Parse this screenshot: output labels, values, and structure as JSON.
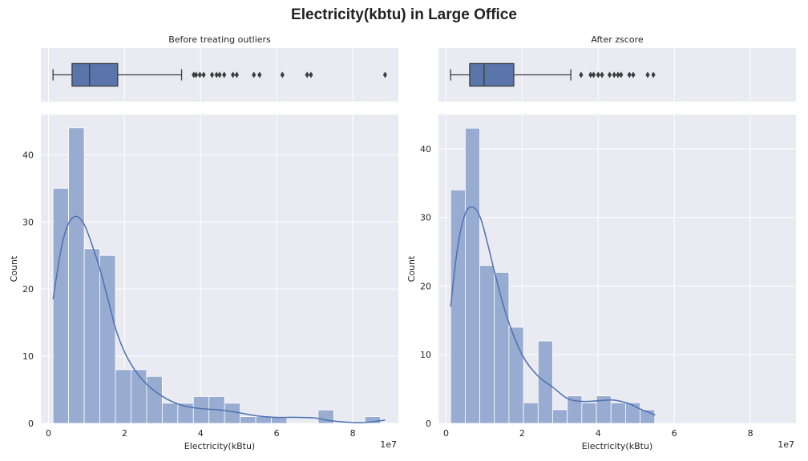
{
  "suptitle": "Electricity(kbtu) in Large Office",
  "colors": {
    "panel_bg": "#eaeaf2",
    "grid": "#ffffff",
    "box_fill": "#5975a9",
    "box_edge": "#3d3d3d",
    "bar_fill": "#98abd1",
    "kde_line": "#4c72b0",
    "text": "#262626"
  },
  "chart_data": [
    {
      "type": "box",
      "title": "Before treating outliers",
      "units_exponent_label": "1e7",
      "xlim": [
        -0.2,
        9.2
      ],
      "whisker_low": 0.12,
      "q1": 0.62,
      "median": 1.08,
      "q3": 1.82,
      "whisker_high": 3.5,
      "outliers": [
        3.82,
        3.88,
        3.98,
        4.08,
        4.3,
        4.42,
        4.5,
        4.62,
        4.85,
        4.95,
        5.4,
        5.55,
        6.15,
        6.8,
        6.9,
        8.85
      ]
    },
    {
      "type": "bar",
      "title": "",
      "xlabel": "Electricity(kBtu)",
      "ylabel": "Count",
      "units_exponent_label": "1e7",
      "xlim": [
        -0.2,
        9.2
      ],
      "ylim": [
        0,
        46
      ],
      "xticks": [
        0,
        2,
        4,
        6,
        8
      ],
      "yticks": [
        0,
        10,
        20,
        30,
        40
      ],
      "bin_width": 0.41,
      "bin_start": 0.12,
      "values": [
        35,
        44,
        26,
        25,
        8,
        8,
        7,
        3,
        3,
        4,
        4,
        3,
        1,
        1,
        1,
        0,
        0,
        2,
        0,
        0,
        1
      ],
      "kde": {
        "x": [
          0.12,
          0.35,
          0.55,
          0.75,
          0.95,
          1.15,
          1.35,
          1.55,
          1.8,
          2.1,
          2.5,
          3.0,
          3.5,
          4.0,
          4.5,
          5.0,
          5.5,
          6.0,
          6.5,
          7.0,
          7.4,
          7.8,
          8.2,
          8.6,
          8.85
        ],
        "y": [
          18.5,
          26.5,
          30.0,
          30.8,
          29.5,
          26.5,
          23.0,
          18.8,
          13.5,
          9.5,
          6.3,
          4.0,
          2.7,
          2.2,
          2.0,
          1.6,
          1.1,
          0.9,
          0.9,
          0.8,
          0.4,
          0.2,
          0.1,
          0.3,
          0.5
        ]
      }
    },
    {
      "type": "box",
      "title": "After zscore",
      "units_exponent_label": "1e7",
      "xlim": [
        -0.2,
        9.2
      ],
      "whisker_low": 0.12,
      "q1": 0.62,
      "median": 1.0,
      "q3": 1.78,
      "whisker_high": 3.28,
      "outliers": [
        3.55,
        3.8,
        3.88,
        4.0,
        4.1,
        4.3,
        4.42,
        4.52,
        4.6,
        4.82,
        4.92,
        5.3,
        5.45
      ]
    },
    {
      "type": "bar",
      "title": "",
      "xlabel": "Electricity(kBtu)",
      "ylabel": "Count",
      "units_exponent_label": "1e7",
      "xlim": [
        -0.2,
        9.2
      ],
      "ylim": [
        0,
        45
      ],
      "xticks": [
        0,
        2,
        4,
        6,
        8
      ],
      "yticks": [
        0,
        10,
        20,
        30,
        40
      ],
      "bin_width": 0.3833,
      "bin_start": 0.12,
      "values": [
        34,
        43,
        23,
        22,
        14,
        3,
        12,
        2,
        4,
        3,
        4,
        3,
        3,
        2
      ],
      "kde": {
        "x": [
          0.12,
          0.3,
          0.5,
          0.7,
          0.9,
          1.1,
          1.3,
          1.6,
          2.0,
          2.4,
          2.8,
          3.2,
          3.6,
          4.0,
          4.4,
          4.8,
          5.1,
          5.5
        ],
        "y": [
          17.0,
          25.5,
          30.5,
          31.5,
          30.0,
          26.0,
          21.5,
          15.5,
          10.0,
          7.0,
          5.3,
          3.6,
          3.2,
          3.3,
          3.4,
          2.9,
          2.1,
          1.2
        ]
      }
    }
  ]
}
